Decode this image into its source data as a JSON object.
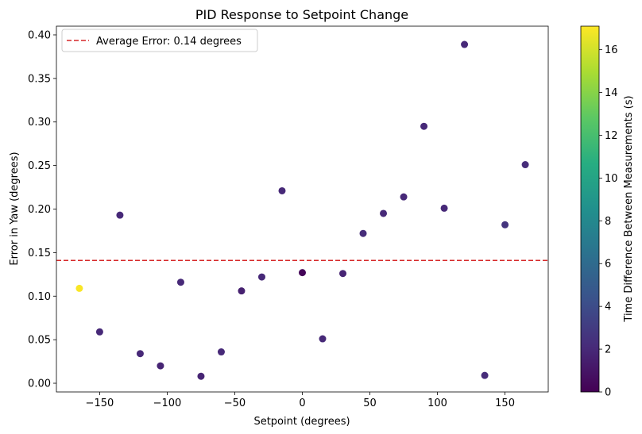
{
  "chart_data": {
    "type": "scatter",
    "title": "PID Response to Setpoint Change",
    "xlabel": "Setpoint (degrees)",
    "ylabel": "Error in Yaw (degrees)",
    "xlim": [
      -182,
      182
    ],
    "ylim": [
      -0.01,
      0.41
    ],
    "xticks": [
      -150,
      -100,
      -50,
      0,
      50,
      100,
      150
    ],
    "xtick_labels": [
      "−150",
      "−100",
      "−50",
      "0",
      "50",
      "100",
      "150"
    ],
    "yticks": [
      0.0,
      0.05,
      0.1,
      0.15,
      0.2,
      0.25,
      0.3,
      0.35,
      0.4
    ],
    "ytick_labels": [
      "0.00",
      "0.05",
      "0.10",
      "0.15",
      "0.20",
      "0.25",
      "0.30",
      "0.35",
      "0.40"
    ],
    "grid": false,
    "points": [
      {
        "x": -165,
        "y": 0.109,
        "c": 17.0
      },
      {
        "x": -150,
        "y": 0.059,
        "c": 2.0
      },
      {
        "x": -135,
        "y": 0.193,
        "c": 2.0
      },
      {
        "x": -120,
        "y": 0.034,
        "c": 2.0
      },
      {
        "x": -105,
        "y": 0.02,
        "c": 1.8
      },
      {
        "x": -90,
        "y": 0.116,
        "c": 2.0
      },
      {
        "x": -75,
        "y": 0.008,
        "c": 1.8
      },
      {
        "x": -60,
        "y": 0.036,
        "c": 2.0
      },
      {
        "x": -45,
        "y": 0.106,
        "c": 1.6
      },
      {
        "x": -30,
        "y": 0.122,
        "c": 2.0
      },
      {
        "x": -15,
        "y": 0.221,
        "c": 2.0
      },
      {
        "x": 0,
        "y": 0.127,
        "c": 0.2
      },
      {
        "x": 15,
        "y": 0.051,
        "c": 2.0
      },
      {
        "x": 30,
        "y": 0.126,
        "c": 1.8
      },
      {
        "x": 45,
        "y": 0.172,
        "c": 2.2
      },
      {
        "x": 60,
        "y": 0.195,
        "c": 2.0
      },
      {
        "x": 75,
        "y": 0.214,
        "c": 2.0
      },
      {
        "x": 90,
        "y": 0.295,
        "c": 2.0
      },
      {
        "x": 105,
        "y": 0.201,
        "c": 2.0
      },
      {
        "x": 120,
        "y": 0.389,
        "c": 2.0
      },
      {
        "x": 135,
        "y": 0.009,
        "c": 2.2
      },
      {
        "x": 150,
        "y": 0.182,
        "c": 2.6
      },
      {
        "x": 165,
        "y": 0.251,
        "c": 2.2
      }
    ],
    "hline": {
      "y": 0.141,
      "color": "#d62728",
      "style": "dashed",
      "label": "Average Error: 0.14 degrees"
    },
    "legend_position": "upper-left",
    "colorbar": {
      "label": "Time Difference Between Measurements (s)",
      "colormap": "viridis",
      "range": [
        0,
        17.1
      ],
      "ticks": [
        0,
        2,
        4,
        6,
        8,
        10,
        12,
        14,
        16
      ],
      "tick_labels": [
        "0",
        "2",
        "4",
        "6",
        "8",
        "10",
        "12",
        "14",
        "16"
      ]
    }
  }
}
